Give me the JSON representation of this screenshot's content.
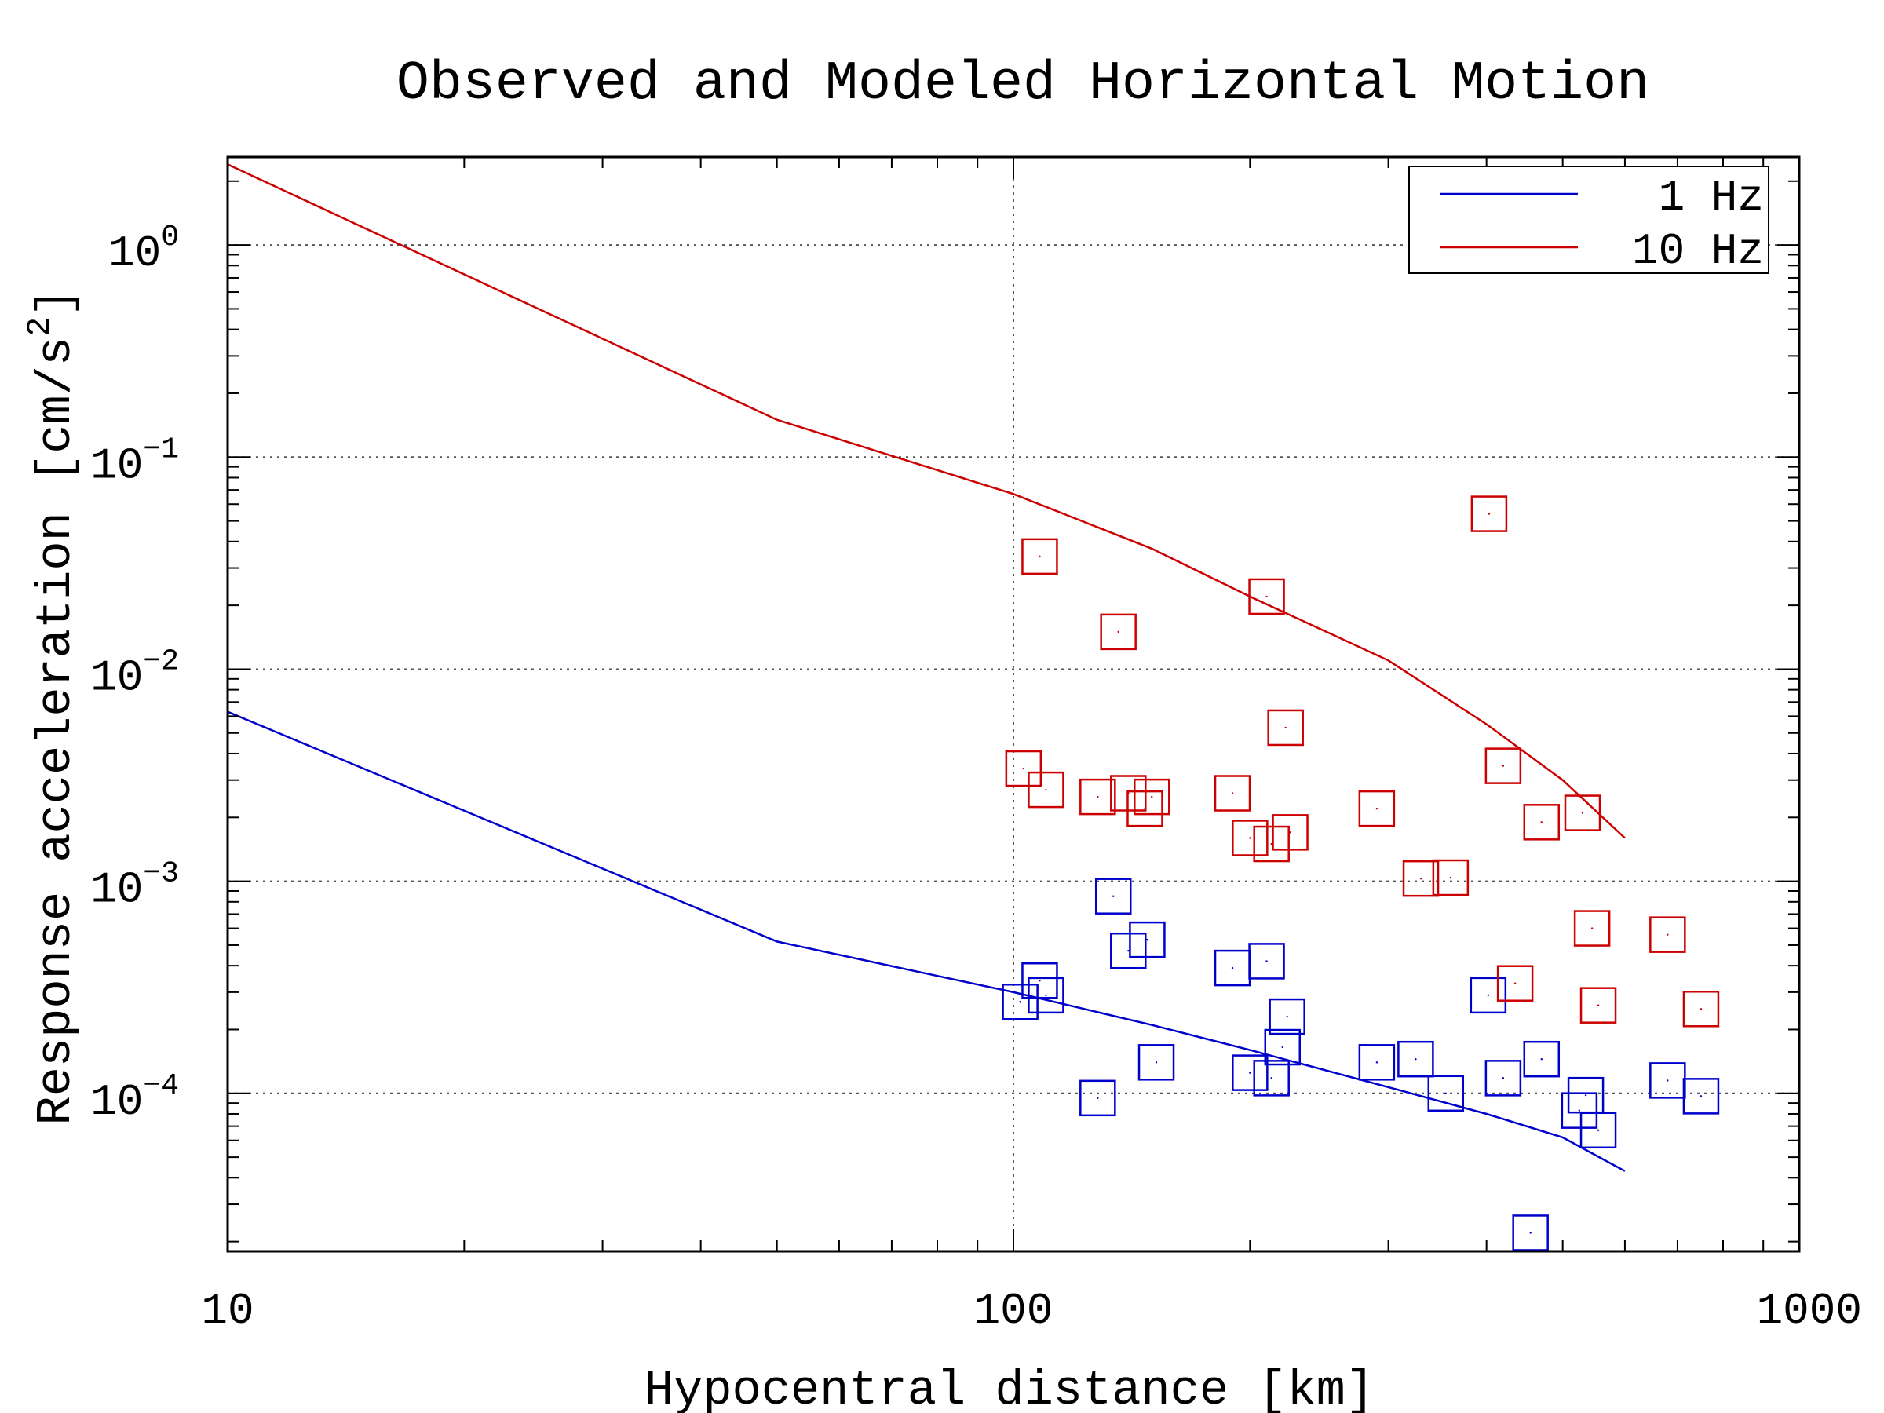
{
  "chart_data": {
    "type": "scatter",
    "title": "Observed and Modeled Horizontal Motion",
    "xlabel": "Hypocentral distance [km]",
    "ylabel_text": "Response acceleration [cm/s",
    "ylabel_sup": "2",
    "ylabel_close": "]",
    "x_scale": "log",
    "y_scale": "log",
    "xlim": [
      10,
      1000
    ],
    "ylim": [
      1.8e-05,
      2.6
    ],
    "x_ticks": [
      {
        "value": 10,
        "label": "10"
      },
      {
        "value": 100,
        "label": "100"
      },
      {
        "value": 1000,
        "label": "1000"
      }
    ],
    "y_ticks": [
      {
        "value": 1,
        "base": "10",
        "exp": "0"
      },
      {
        "value": 0.1,
        "base": "10",
        "exp": "−1"
      },
      {
        "value": 0.01,
        "base": "10",
        "exp": "−2"
      },
      {
        "value": 0.001,
        "base": "10",
        "exp": "−3"
      },
      {
        "value": 0.0001,
        "base": "10",
        "exp": "−4"
      }
    ],
    "grid": true,
    "legend_position": "top-right",
    "series": [
      {
        "name": "1 Hz",
        "color": "#0000cc",
        "line": [
          [
            10,
            0.0063
          ],
          [
            50,
            0.00052
          ],
          [
            100,
            0.0003
          ],
          [
            150,
            0.00021
          ],
          [
            200,
            0.00016
          ],
          [
            300,
            0.000107
          ],
          [
            400,
            8e-05
          ],
          [
            500,
            6.2e-05
          ],
          [
            600,
            4.3e-05
          ]
        ],
        "observed": [
          [
            102,
            0.00027
          ],
          [
            108,
            0.00034
          ],
          [
            110,
            0.00029
          ],
          [
            128,
            9.5e-05
          ],
          [
            134,
            0.00085
          ],
          [
            140,
            0.00047
          ],
          [
            148,
            0.00053
          ],
          [
            152,
            0.00014
          ],
          [
            190,
            0.00039
          ],
          [
            200,
            0.000125
          ],
          [
            210,
            0.00042
          ],
          [
            213,
            0.000118
          ],
          [
            220,
            0.000165
          ],
          [
            223,
            0.00023
          ],
          [
            290,
            0.00014
          ],
          [
            325,
            0.000145
          ],
          [
            355,
            0.0001
          ],
          [
            402,
            0.00029
          ],
          [
            420,
            0.000118
          ],
          [
            455,
            2.2e-05
          ],
          [
            470,
            0.000145
          ],
          [
            525,
            8.3e-05
          ],
          [
            535,
            9.8e-05
          ],
          [
            555,
            6.7e-05
          ],
          [
            680,
            0.000115
          ],
          [
            750,
            9.7e-05
          ]
        ]
      },
      {
        "name": "10 Hz",
        "color": "#cc0000",
        "line": [
          [
            10,
            2.4
          ],
          [
            50,
            0.15
          ],
          [
            100,
            0.067
          ],
          [
            150,
            0.037
          ],
          [
            200,
            0.022
          ],
          [
            300,
            0.011
          ],
          [
            400,
            0.0055
          ],
          [
            500,
            0.003
          ],
          [
            600,
            0.0016
          ]
        ],
        "observed": [
          [
            103,
            0.0034
          ],
          [
            108,
            0.034
          ],
          [
            110,
            0.0027
          ],
          [
            128,
            0.0025
          ],
          [
            136,
            0.015
          ],
          [
            140,
            0.0026
          ],
          [
            147,
            0.0022
          ],
          [
            150,
            0.0025
          ],
          [
            190,
            0.0026
          ],
          [
            200,
            0.0016
          ],
          [
            210,
            0.022
          ],
          [
            213,
            0.0015
          ],
          [
            222,
            0.0053
          ],
          [
            225,
            0.0017
          ],
          [
            290,
            0.0022
          ],
          [
            330,
            0.00103
          ],
          [
            360,
            0.00104
          ],
          [
            403,
            0.054
          ],
          [
            420,
            0.0035
          ],
          [
            435,
            0.00033
          ],
          [
            470,
            0.0019
          ],
          [
            530,
            0.0021
          ],
          [
            545,
            0.0006
          ],
          [
            555,
            0.00026
          ],
          [
            680,
            0.00056
          ],
          [
            750,
            0.00025
          ]
        ]
      }
    ]
  }
}
